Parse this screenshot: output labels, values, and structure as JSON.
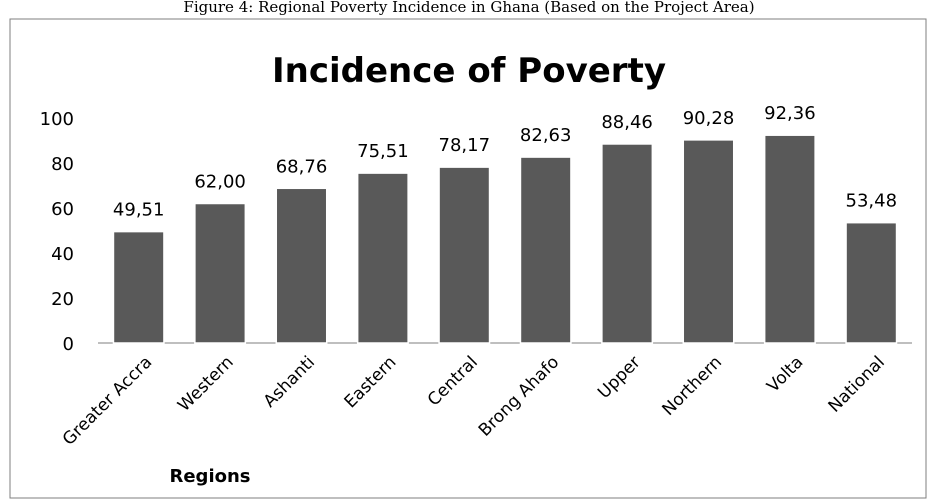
{
  "caption": "Figure 4: Regional Poverty Incidence in Ghana (Based on the Project Area)",
  "chart_data": {
    "type": "bar",
    "title": "Incidence of Poverty",
    "xlabel": "Regions",
    "ylabel": "",
    "categories": [
      "Greater Accra",
      "Western",
      "Ashanti",
      "Eastern",
      "Central",
      "Brong Ahafo",
      "Upper",
      "Northern",
      "Volta",
      "National"
    ],
    "values": [
      49.51,
      62.0,
      68.76,
      75.51,
      78.17,
      82.63,
      88.46,
      90.28,
      92.36,
      53.48
    ],
    "data_labels": [
      "49,51",
      "62,00",
      "68,76",
      "75,51",
      "78,17",
      "82,63",
      "88,46",
      "90,28",
      "92,36",
      "53,48"
    ],
    "ylim": [
      0,
      100
    ],
    "yticks": [
      0,
      20,
      40,
      60,
      80,
      100
    ],
    "grid": false,
    "legend": "none",
    "bar_color": "#595959"
  }
}
